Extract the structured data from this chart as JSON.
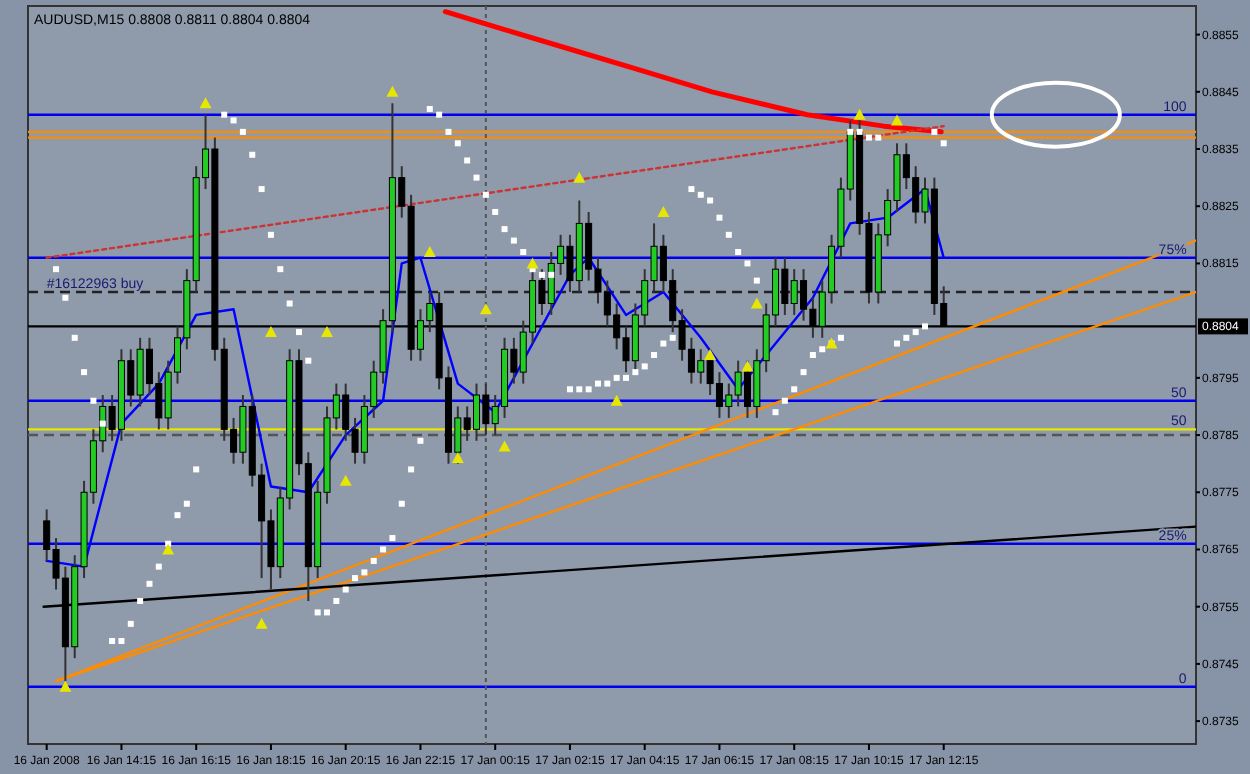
{
  "chart_data": {
    "type": "candlestick",
    "title": "AUDUSD,M15  0.8808 0.8811 0.8804 0.8804",
    "x": [
      "2008-01-16T12:15",
      "2008-01-16T12:30",
      "2008-01-16T12:45",
      "2008-01-16T13:00",
      "2008-01-16T13:15",
      "2008-01-16T13:30",
      "2008-01-16T13:45",
      "2008-01-16T14:00",
      "2008-01-16T14:15",
      "2008-01-16T14:30",
      "2008-01-16T14:45",
      "2008-01-16T15:00",
      "2008-01-16T15:15",
      "2008-01-16T15:30",
      "2008-01-16T15:45",
      "2008-01-16T16:00",
      "2008-01-16T16:15",
      "2008-01-16T16:30",
      "2008-01-16T16:45",
      "2008-01-16T17:00",
      "2008-01-16T17:15",
      "2008-01-16T17:30",
      "2008-01-16T17:45",
      "2008-01-16T18:00",
      "2008-01-16T18:15",
      "2008-01-16T18:30",
      "2008-01-16T18:45",
      "2008-01-16T19:00",
      "2008-01-16T19:15",
      "2008-01-16T19:30",
      "2008-01-16T19:45",
      "2008-01-16T20:00",
      "2008-01-16T20:15",
      "2008-01-16T20:30",
      "2008-01-16T20:45",
      "2008-01-16T21:00",
      "2008-01-16T21:15",
      "2008-01-16T21:30",
      "2008-01-16T21:45",
      "2008-01-16T22:00",
      "2008-01-16T22:15",
      "2008-01-16T22:30",
      "2008-01-16T22:45",
      "2008-01-16T23:00",
      "2008-01-16T23:15",
      "2008-01-16T23:30",
      "2008-01-16T23:45",
      "2008-01-17T00:00",
      "2008-01-17T00:15",
      "2008-01-17T00:30",
      "2008-01-17T00:45",
      "2008-01-17T01:00",
      "2008-01-17T01:15",
      "2008-01-17T01:30",
      "2008-01-17T01:45",
      "2008-01-17T02:00",
      "2008-01-17T02:15",
      "2008-01-17T02:30",
      "2008-01-17T02:45",
      "2008-01-17T03:00",
      "2008-01-17T03:15",
      "2008-01-17T03:30",
      "2008-01-17T03:45",
      "2008-01-17T04:00",
      "2008-01-17T04:15",
      "2008-01-17T04:30",
      "2008-01-17T04:45",
      "2008-01-17T05:00",
      "2008-01-17T05:15",
      "2008-01-17T05:30",
      "2008-01-17T05:45",
      "2008-01-17T06:00",
      "2008-01-17T06:15",
      "2008-01-17T06:30",
      "2008-01-17T06:45",
      "2008-01-17T07:00",
      "2008-01-17T07:15",
      "2008-01-17T07:30",
      "2008-01-17T07:45",
      "2008-01-17T08:00",
      "2008-01-17T08:15",
      "2008-01-17T08:30",
      "2008-01-17T08:45",
      "2008-01-17T09:00",
      "2008-01-17T09:15",
      "2008-01-17T09:30",
      "2008-01-17T09:45",
      "2008-01-17T10:00",
      "2008-01-17T10:15",
      "2008-01-17T10:30",
      "2008-01-17T10:45",
      "2008-01-17T11:00",
      "2008-01-17T11:15",
      "2008-01-17T11:30",
      "2008-01-17T11:45",
      "2008-01-17T12:00",
      "2008-01-17T12:15"
    ],
    "ohlc": [
      [
        0.877,
        0.8772,
        0.8763,
        0.8765
      ],
      [
        0.8765,
        0.8767,
        0.8758,
        0.876
      ],
      [
        0.876,
        0.8762,
        0.8742,
        0.8748
      ],
      [
        0.8748,
        0.8764,
        0.8746,
        0.8762
      ],
      [
        0.8762,
        0.8777,
        0.876,
        0.8775
      ],
      [
        0.8775,
        0.8786,
        0.8773,
        0.8784
      ],
      [
        0.8784,
        0.8792,
        0.8782,
        0.879
      ],
      [
        0.879,
        0.8792,
        0.8784,
        0.8786
      ],
      [
        0.8786,
        0.88,
        0.8784,
        0.8798
      ],
      [
        0.8798,
        0.88,
        0.879,
        0.8792
      ],
      [
        0.8792,
        0.8802,
        0.879,
        0.88
      ],
      [
        0.88,
        0.8802,
        0.8792,
        0.8794
      ],
      [
        0.8794,
        0.8796,
        0.8786,
        0.8788
      ],
      [
        0.8788,
        0.8798,
        0.8786,
        0.8796
      ],
      [
        0.8796,
        0.8804,
        0.8794,
        0.8802
      ],
      [
        0.8802,
        0.8814,
        0.88,
        0.8812
      ],
      [
        0.8812,
        0.8832,
        0.881,
        0.883
      ],
      [
        0.883,
        0.8841,
        0.8828,
        0.8835
      ],
      [
        0.8835,
        0.8837,
        0.8798,
        0.88
      ],
      [
        0.88,
        0.8802,
        0.8784,
        0.8786
      ],
      [
        0.8786,
        0.8788,
        0.878,
        0.8782
      ],
      [
        0.8782,
        0.8792,
        0.878,
        0.879
      ],
      [
        0.879,
        0.8792,
        0.8776,
        0.8778
      ],
      [
        0.8778,
        0.878,
        0.876,
        0.877
      ],
      [
        0.877,
        0.8772,
        0.8758,
        0.8762
      ],
      [
        0.8762,
        0.8776,
        0.876,
        0.8774
      ],
      [
        0.8774,
        0.88,
        0.8772,
        0.8798
      ],
      [
        0.8798,
        0.88,
        0.8778,
        0.878
      ],
      [
        0.878,
        0.8782,
        0.8756,
        0.8762
      ],
      [
        0.8762,
        0.8777,
        0.876,
        0.8775
      ],
      [
        0.8775,
        0.879,
        0.8773,
        0.8788
      ],
      [
        0.8788,
        0.8794,
        0.8786,
        0.8792
      ],
      [
        0.8792,
        0.8794,
        0.8784,
        0.8786
      ],
      [
        0.8786,
        0.8788,
        0.878,
        0.8782
      ],
      [
        0.8782,
        0.8792,
        0.878,
        0.879
      ],
      [
        0.879,
        0.8798,
        0.8788,
        0.8796
      ],
      [
        0.8796,
        0.8807,
        0.8794,
        0.8805
      ],
      [
        0.8805,
        0.8843,
        0.8803,
        0.883
      ],
      [
        0.883,
        0.8832,
        0.8823,
        0.8825
      ],
      [
        0.8825,
        0.8827,
        0.8798,
        0.88
      ],
      [
        0.88,
        0.8807,
        0.8798,
        0.8805
      ],
      [
        0.8805,
        0.881,
        0.8803,
        0.8808
      ],
      [
        0.8808,
        0.881,
        0.8793,
        0.8795
      ],
      [
        0.8795,
        0.8797,
        0.878,
        0.8782
      ],
      [
        0.8782,
        0.879,
        0.878,
        0.8788
      ],
      [
        0.8788,
        0.879,
        0.8784,
        0.8786
      ],
      [
        0.8786,
        0.8794,
        0.8784,
        0.8792
      ],
      [
        0.8792,
        0.8794,
        0.8785,
        0.8787
      ],
      [
        0.8787,
        0.8792,
        0.8785,
        0.879
      ],
      [
        0.879,
        0.8802,
        0.8788,
        0.88
      ],
      [
        0.88,
        0.8802,
        0.8794,
        0.8796
      ],
      [
        0.8796,
        0.8805,
        0.8794,
        0.8803
      ],
      [
        0.8803,
        0.8814,
        0.8801,
        0.8812
      ],
      [
        0.8812,
        0.8814,
        0.8806,
        0.8808
      ],
      [
        0.8808,
        0.8817,
        0.8806,
        0.8815
      ],
      [
        0.8815,
        0.882,
        0.8813,
        0.8818
      ],
      [
        0.8818,
        0.882,
        0.881,
        0.8812
      ],
      [
        0.8812,
        0.8826,
        0.881,
        0.8822
      ],
      [
        0.8822,
        0.8824,
        0.8812,
        0.8814
      ],
      [
        0.8814,
        0.8816,
        0.8808,
        0.881
      ],
      [
        0.881,
        0.8812,
        0.8804,
        0.8806
      ],
      [
        0.8806,
        0.8808,
        0.88,
        0.8802
      ],
      [
        0.8802,
        0.8804,
        0.8796,
        0.8798
      ],
      [
        0.8798,
        0.8808,
        0.8796,
        0.8806
      ],
      [
        0.8806,
        0.8814,
        0.8804,
        0.8812
      ],
      [
        0.8812,
        0.8822,
        0.881,
        0.8818
      ],
      [
        0.8818,
        0.882,
        0.881,
        0.8812
      ],
      [
        0.8812,
        0.8814,
        0.8803,
        0.8805
      ],
      [
        0.8805,
        0.8807,
        0.8798,
        0.88
      ],
      [
        0.88,
        0.8802,
        0.8794,
        0.8796
      ],
      [
        0.8796,
        0.88,
        0.8794,
        0.8798
      ],
      [
        0.8798,
        0.88,
        0.8792,
        0.8794
      ],
      [
        0.8794,
        0.8796,
        0.8788,
        0.879
      ],
      [
        0.879,
        0.8794,
        0.8788,
        0.8792
      ],
      [
        0.8792,
        0.8798,
        0.879,
        0.8796
      ],
      [
        0.8796,
        0.8798,
        0.8788,
        0.879
      ],
      [
        0.879,
        0.88,
        0.8788,
        0.8798
      ],
      [
        0.8798,
        0.8808,
        0.8796,
        0.8806
      ],
      [
        0.8806,
        0.8816,
        0.8804,
        0.8814
      ],
      [
        0.8814,
        0.8816,
        0.8806,
        0.8808
      ],
      [
        0.8808,
        0.8814,
        0.8806,
        0.8812
      ],
      [
        0.8812,
        0.8814,
        0.8805,
        0.8807
      ],
      [
        0.8807,
        0.8809,
        0.8802,
        0.8804
      ],
      [
        0.8804,
        0.8812,
        0.8802,
        0.881
      ],
      [
        0.881,
        0.882,
        0.8808,
        0.8818
      ],
      [
        0.8818,
        0.883,
        0.8816,
        0.8828
      ],
      [
        0.8828,
        0.884,
        0.8826,
        0.8838
      ],
      [
        0.8838,
        0.884,
        0.882,
        0.8822
      ],
      [
        0.8822,
        0.8824,
        0.8808,
        0.881
      ],
      [
        0.881,
        0.8822,
        0.8808,
        0.882
      ],
      [
        0.882,
        0.8828,
        0.8818,
        0.8826
      ],
      [
        0.8826,
        0.8836,
        0.8824,
        0.8834
      ],
      [
        0.8834,
        0.8836,
        0.8828,
        0.883
      ],
      [
        0.883,
        0.8832,
        0.8822,
        0.8824
      ],
      [
        0.8824,
        0.883,
        0.8822,
        0.8828
      ],
      [
        0.8828,
        0.883,
        0.8806,
        0.8808
      ],
      [
        0.8808,
        0.8811,
        0.8804,
        0.8804
      ]
    ],
    "series": [
      {
        "type": "line",
        "color": "#0000ff",
        "x": [
          "2008-01-16T12:15",
          "2008-01-16T13:15",
          "2008-01-16T14:15",
          "2008-01-16T15:15",
          "2008-01-16T16:15",
          "2008-01-16T17:15",
          "2008-01-16T18:15",
          "2008-01-16T19:15",
          "2008-01-16T20:15",
          "2008-01-16T21:15",
          "2008-01-16T21:45",
          "2008-01-16T22:15",
          "2008-01-16T23:15",
          "2008-01-17T00:15",
          "2008-01-17T01:15",
          "2008-01-17T02:15",
          "2008-01-17T02:45",
          "2008-01-17T03:45",
          "2008-01-17T04:45",
          "2008-01-17T05:45",
          "2008-01-17T06:45",
          "2008-01-17T07:45",
          "2008-01-17T08:45",
          "2008-01-17T09:45",
          "2008-01-17T10:45",
          "2008-01-17T11:45",
          "2008-01-17T12:15"
        ],
        "values": [
          0.8763,
          0.8762,
          0.8787,
          0.8794,
          0.8806,
          0.8807,
          0.8776,
          0.8775,
          0.8785,
          0.8791,
          0.8815,
          0.8816,
          0.8794,
          0.8789,
          0.8801,
          0.8813,
          0.8816,
          0.8806,
          0.881,
          0.8802,
          0.8793,
          0.8801,
          0.8809,
          0.8822,
          0.8823,
          0.8828,
          0.8816
        ]
      },
      {
        "type": "line",
        "color": "#ff0000",
        "x": [
          "2008-01-16T22:55",
          "2008-01-17T00:26",
          "2008-01-17T02:29",
          "2008-01-17T04:01",
          "2008-01-17T06:03",
          "2008-01-17T08:36",
          "2008-01-17T10:39",
          "2008-01-17T12:11"
        ],
        "values": [
          0.8859,
          0.8856,
          0.8852,
          0.8849,
          0.8845,
          0.8841,
          0.8839,
          0.8838
        ]
      },
      {
        "type": "line",
        "color": "#cc3333",
        "line_style": "dotted",
        "x": [
          "2008-01-16T12:15",
          "2008-01-17T12:15"
        ],
        "values": [
          0.8816,
          0.8839
        ]
      },
      {
        "type": "line",
        "color": "#ff8c00",
        "x": [
          "2008-01-16T12:30",
          "2008-01-17T19:00"
        ],
        "values": [
          0.8742,
          0.8819
        ]
      },
      {
        "type": "line",
        "color": "#ff8c00",
        "x": [
          "2008-01-16T12:30",
          "2008-01-17T19:00"
        ],
        "values": [
          0.8742,
          0.881
        ]
      },
      {
        "type": "line",
        "color": "#000000",
        "x": [
          "2008-01-16T12:10",
          "2008-01-17T19:00"
        ],
        "values": [
          0.8755,
          0.8769
        ]
      },
      {
        "type": "scatter",
        "color": "#ffffff",
        "marker": "square",
        "x": [
          "2008-01-16T12:30",
          "2008-01-16T12:45",
          "2008-01-16T13:00",
          "2008-01-16T13:15",
          "2008-01-16T13:30",
          "2008-01-16T13:45",
          "2008-01-16T14:00",
          "2008-01-16T14:15",
          "2008-01-16T14:30",
          "2008-01-16T14:45",
          "2008-01-16T15:00",
          "2008-01-16T15:15",
          "2008-01-16T15:30",
          "2008-01-16T15:45",
          "2008-01-16T16:00",
          "2008-01-16T16:15",
          "2008-01-16T17:00",
          "2008-01-16T17:15",
          "2008-01-16T17:30",
          "2008-01-16T17:45",
          "2008-01-16T18:00",
          "2008-01-16T18:15",
          "2008-01-16T18:30",
          "2008-01-16T18:45",
          "2008-01-16T19:00",
          "2008-01-16T19:15",
          "2008-01-16T19:30",
          "2008-01-16T19:45",
          "2008-01-16T20:00",
          "2008-01-16T20:15",
          "2008-01-16T20:30",
          "2008-01-16T20:45",
          "2008-01-16T21:00",
          "2008-01-16T21:15",
          "2008-01-16T21:30",
          "2008-01-16T21:45",
          "2008-01-16T22:00",
          "2008-01-16T22:15",
          "2008-01-16T22:30",
          "2008-01-16T22:45",
          "2008-01-16T23:00",
          "2008-01-16T23:15",
          "2008-01-16T23:30",
          "2008-01-16T23:45",
          "2008-01-17T00:00",
          "2008-01-17T00:15",
          "2008-01-17T00:30",
          "2008-01-17T00:45",
          "2008-01-17T01:00",
          "2008-01-17T01:15",
          "2008-01-17T01:30",
          "2008-01-17T01:45",
          "2008-01-17T02:15",
          "2008-01-17T02:30",
          "2008-01-17T02:45",
          "2008-01-17T03:00",
          "2008-01-17T03:15",
          "2008-01-17T03:30",
          "2008-01-17T03:45",
          "2008-01-17T04:00",
          "2008-01-17T04:15",
          "2008-01-17T04:30",
          "2008-01-17T04:45",
          "2008-01-17T05:00",
          "2008-01-17T05:30",
          "2008-01-17T05:45",
          "2008-01-17T06:00",
          "2008-01-17T06:15",
          "2008-01-17T06:30",
          "2008-01-17T06:45",
          "2008-01-17T07:00",
          "2008-01-17T07:15",
          "2008-01-17T07:45",
          "2008-01-17T08:00",
          "2008-01-17T08:15",
          "2008-01-17T08:30",
          "2008-01-17T08:45",
          "2008-01-17T09:00",
          "2008-01-17T09:15",
          "2008-01-17T09:30",
          "2008-01-17T09:45",
          "2008-01-17T10:00",
          "2008-01-17T10:15",
          "2008-01-17T10:30",
          "2008-01-17T11:00",
          "2008-01-17T11:15",
          "2008-01-17T11:30",
          "2008-01-17T11:45",
          "2008-01-17T12:00",
          "2008-01-17T12:15"
        ],
        "values": [
          0.8814,
          0.8809,
          0.8802,
          0.8796,
          0.8791,
          0.8787,
          0.8749,
          0.8749,
          0.8752,
          0.8756,
          0.8759,
          0.8762,
          0.8766,
          0.8771,
          0.8773,
          0.8779,
          0.8841,
          0.884,
          0.8838,
          0.8834,
          0.8828,
          0.882,
          0.8814,
          0.8808,
          0.8803,
          0.8798,
          0.8754,
          0.8754,
          0.8756,
          0.8758,
          0.876,
          0.8761,
          0.8763,
          0.8765,
          0.8767,
          0.8773,
          0.8779,
          0.8784,
          0.8842,
          0.8841,
          0.8838,
          0.8836,
          0.8833,
          0.883,
          0.8827,
          0.8824,
          0.8821,
          0.8819,
          0.8817,
          0.8814,
          0.8813,
          0.8813,
          0.8793,
          0.8793,
          0.8793,
          0.8794,
          0.8794,
          0.8795,
          0.8795,
          0.8796,
          0.8797,
          0.8799,
          0.8801,
          0.8802,
          0.8828,
          0.8827,
          0.8826,
          0.8823,
          0.882,
          0.8817,
          0.8815,
          0.8812,
          0.8789,
          0.8791,
          0.8793,
          0.8796,
          0.8799,
          0.88,
          0.8801,
          0.8802,
          0.8838,
          0.8838,
          0.8837,
          0.8837,
          0.8801,
          0.8802,
          0.8803,
          0.8804,
          0.8838,
          0.8836
        ]
      },
      {
        "type": "scatter",
        "color": "#e6e600",
        "marker": "triangle",
        "x": [
          "2008-01-16T16:30",
          "2008-01-16T18:15",
          "2008-01-16T19:45",
          "2008-01-16T21:30",
          "2008-01-16T22:30",
          "2008-01-17T00:00",
          "2008-01-17T01:15",
          "2008-01-17T02:30",
          "2008-01-17T04:45",
          "2008-01-17T07:15",
          "2008-01-17T10:00",
          "2008-01-17T11:00",
          "2008-01-16T12:45",
          "2008-01-16T15:30",
          "2008-01-16T18:00",
          "2008-01-16T20:15",
          "2008-01-16T23:15",
          "2008-01-17T00:30",
          "2008-01-17T03:30",
          "2008-01-17T06:00",
          "2008-01-17T07:00",
          "2008-01-17T09:15"
        ],
        "values": [
          0.8843,
          0.8803,
          0.8803,
          0.8845,
          0.8817,
          0.8807,
          0.8815,
          0.883,
          0.8824,
          0.8808,
          0.8841,
          0.884,
          0.8741,
          0.8765,
          0.8752,
          0.8777,
          0.8781,
          0.8783,
          0.8791,
          0.8799,
          0.8797,
          0.8801
        ]
      }
    ],
    "ref_lines": [
      {
        "axis": "y",
        "value": 0.8841,
        "color": "#0000ee"
      },
      {
        "axis": "y",
        "value": 0.8816,
        "color": "#0000ee"
      },
      {
        "axis": "y",
        "value": 0.8791,
        "color": "#0000ee"
      },
      {
        "axis": "y",
        "value": 0.8766,
        "color": "#0000ee"
      },
      {
        "axis": "y",
        "value": 0.8741,
        "color": "#0000ee"
      },
      {
        "axis": "y",
        "value": 0.8786,
        "color": "#e6e600"
      },
      {
        "axis": "y",
        "value": 0.8838,
        "color": "#ff8c00"
      },
      {
        "axis": "y",
        "value": 0.8837,
        "color": "#ff8c00"
      },
      {
        "axis": "y",
        "value": 0.8804,
        "label": "0.8804",
        "color": "#000000"
      },
      {
        "axis": "y",
        "value": 0.881,
        "color": "#222222",
        "line_style": "dashed"
      },
      {
        "axis": "y",
        "value": 0.8785,
        "color": "#555555",
        "line_style": "dashed"
      },
      {
        "axis": "x",
        "value": "2008-01-17T00:00",
        "color": "#555555",
        "line_style": "dotted"
      }
    ],
    "annotations": [
      {
        "text": "100",
        "x": "2008-01-17T18:45",
        "y": 0.8841
      },
      {
        "text": "75%",
        "x": "2008-01-17T18:45",
        "y": 0.8816
      },
      {
        "text": "50",
        "x": "2008-01-17T18:45",
        "y": 0.8791
      },
      {
        "text": "25%",
        "x": "2008-01-17T18:45",
        "y": 0.8766
      },
      {
        "text": "0",
        "x": "2008-01-17T18:45",
        "y": 0.8741
      },
      {
        "text": "50",
        "x": "2008-01-17T18:45",
        "y": 0.8786
      },
      {
        "text": "#16122963 buy",
        "x": "2008-01-16T12:15",
        "y": 0.881
      }
    ],
    "xlim": [
      "2008-01-16T11:45",
      "2008-01-17T19:00"
    ],
    "xticks": [
      {
        "value": "2008-01-16T12:15",
        "label": "16 Jan 2008"
      },
      {
        "value": "2008-01-16T14:15",
        "label": "16 Jan 14:15"
      },
      {
        "value": "2008-01-16T16:15",
        "label": "16 Jan 16:15"
      },
      {
        "value": "2008-01-16T18:15",
        "label": "16 Jan 18:15"
      },
      {
        "value": "2008-01-16T20:15",
        "label": "16 Jan 20:15"
      },
      {
        "value": "2008-01-16T22:15",
        "label": "16 Jan 22:15"
      },
      {
        "value": "2008-01-17T00:15",
        "label": "17 Jan 00:15"
      },
      {
        "value": "2008-01-17T02:15",
        "label": "17 Jan 02:15"
      },
      {
        "value": "2008-01-17T04:15",
        "label": "17 Jan 04:15"
      },
      {
        "value": "2008-01-17T06:15",
        "label": "17 Jan 06:15"
      },
      {
        "value": "2008-01-17T08:15",
        "label": "17 Jan 08:15"
      },
      {
        "value": "2008-01-17T10:15",
        "label": "17 Jan 10:15"
      },
      {
        "value": "2008-01-17T12:15",
        "label": "17 Jan 12:15"
      }
    ],
    "ylim": [
      0.8731,
      0.886
    ],
    "yticks": [
      0.8855,
      0.8845,
      0.8835,
      0.8825,
      0.8815,
      0.8795,
      0.8785,
      0.8775,
      0.8765,
      0.8755,
      0.8745,
      0.8735
    ],
    "grid": false
  }
}
